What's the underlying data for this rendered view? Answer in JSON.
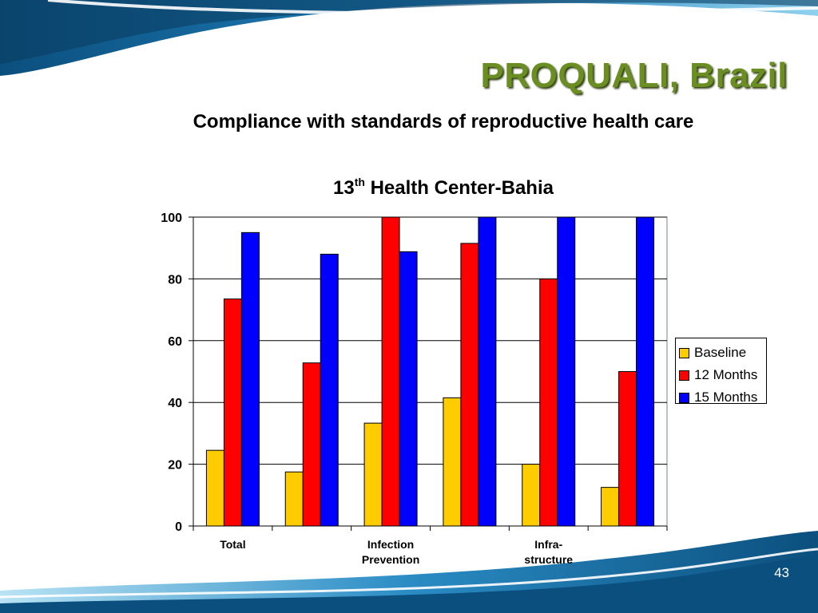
{
  "slide": {
    "title": "PROQUALI, Brazil",
    "page_number": "43"
  },
  "chart_data": {
    "type": "bar",
    "title": "Compliance with standards of reproductive health care",
    "subtitle_main": "13",
    "subtitle_sup": "th",
    "subtitle_rest": " Health Center-Bahia",
    "categories": [
      [
        "Total"
      ],
      [],
      [
        "Infection",
        "Prevention"
      ],
      [],
      [
        "Infra-",
        "structure"
      ],
      []
    ],
    "series": [
      {
        "name": "Baseline",
        "color": "#ffcc00",
        "values": [
          24.5,
          17.5,
          33.3,
          41.5,
          20,
          12.5
        ]
      },
      {
        "name": "12 Months",
        "color": "#ff0000",
        "values": [
          73.5,
          52.8,
          100,
          91.5,
          80,
          50
        ]
      },
      {
        "name": "15 Months",
        "color": "#0000ff",
        "values": [
          95,
          88,
          88.8,
          100,
          100,
          100
        ]
      }
    ],
    "ylim": [
      0,
      100
    ],
    "yticks": [
      0,
      20,
      40,
      60,
      80,
      100
    ],
    "grid": true,
    "legend_position": "right"
  }
}
